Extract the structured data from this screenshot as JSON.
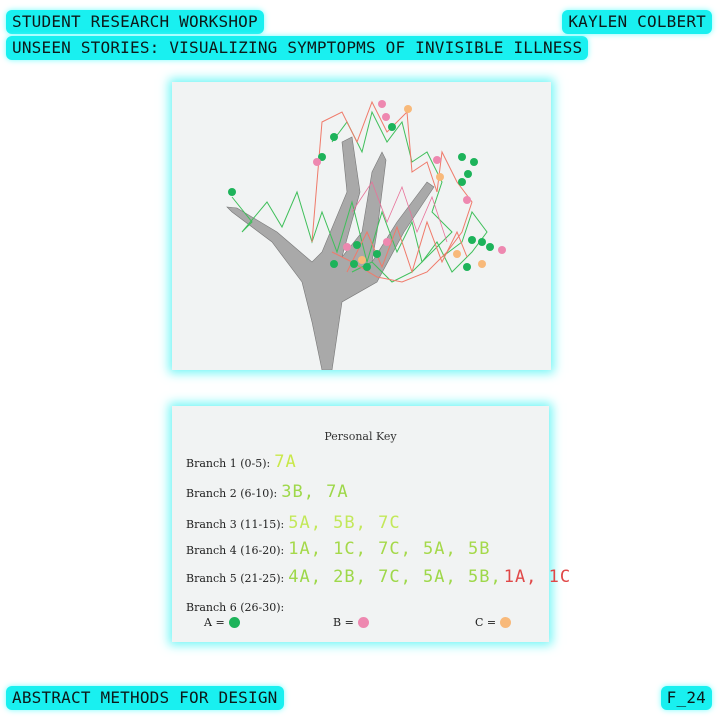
{
  "header": {
    "line1": "STUDENT RESEARCH WORKSHOP",
    "line2": "UNSEEN STORIES: VISUALIZING SYMPTOPMS OF INVISIBLE ILLNESS",
    "author": "KAYLEN COLBERT"
  },
  "footer": {
    "course": "ABSTRACT METHODS FOR DESIGN",
    "code": "F_24"
  },
  "key": {
    "title": "Personal Key",
    "rows": [
      {
        "label": "Branch 1 (0-5):",
        "value": "7A"
      },
      {
        "label": "Branch 2 (6-10):",
        "value": "3B, 7A"
      },
      {
        "label": "Branch 3 (11-15):",
        "value": "5A, 5B, 7C"
      },
      {
        "label": "Branch 4 (16-20):",
        "value": "1A, 1C, 7C, 5A, 5B"
      },
      {
        "label": "Branch 5 (21-25):",
        "value": "4A, 2B, 7C, 5A, 5B,",
        "value_red": "1A, 1C"
      },
      {
        "label": "Branch 6 (26-30):",
        "value": ""
      }
    ],
    "legend": [
      {
        "label": "A =",
        "color": "#1db35a"
      },
      {
        "label": "B =",
        "color": "#ee88b0"
      },
      {
        "label": "C =",
        "color": "#f8b97a"
      }
    ]
  },
  "colors": {
    "accent": "#19f0f0",
    "green": "#1db35a",
    "pink": "#ee88b0",
    "orange": "#f8b97a",
    "hand_green": "#9ed84a",
    "hand_red": "#e04848"
  }
}
